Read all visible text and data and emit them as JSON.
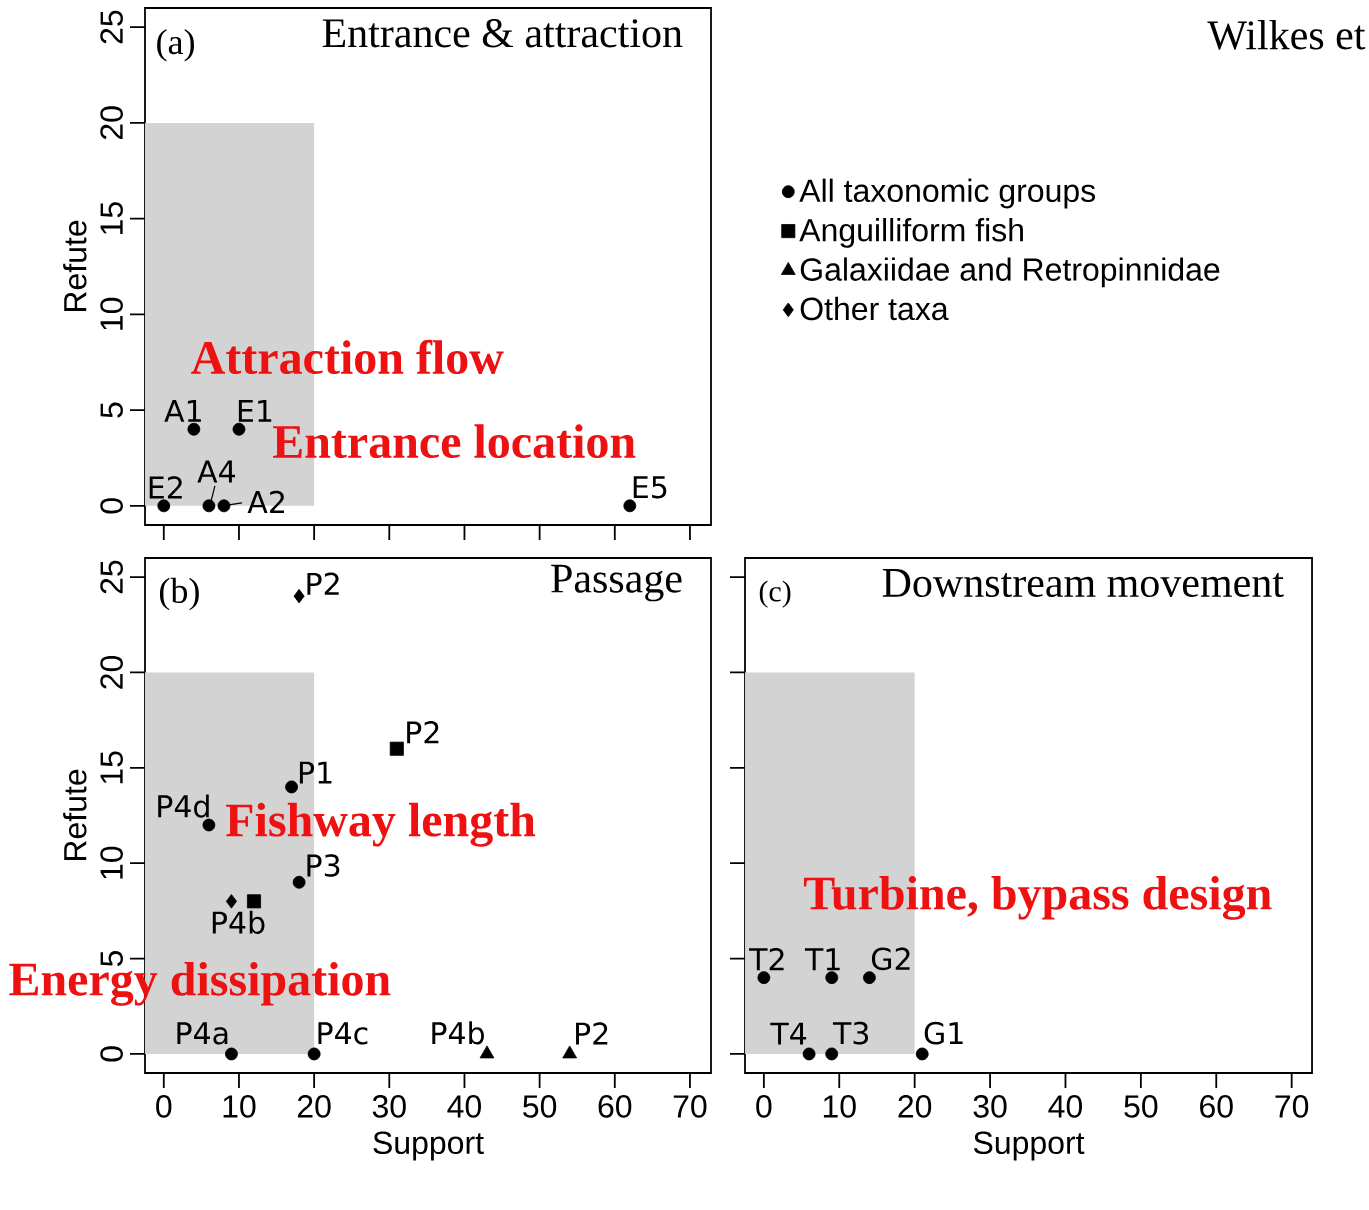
{
  "chart_data": [
    {
      "type": "scatter",
      "title": "Entrance & attraction",
      "ylabel": "Refute",
      "xlim": [
        -2.5,
        72.8
      ],
      "ylim": [
        -1,
        26
      ],
      "xticks": [
        0,
        10,
        20,
        30,
        40,
        50,
        60,
        70
      ],
      "yticks": [
        0,
        5,
        10,
        15,
        20,
        25
      ],
      "tick_labels": "y",
      "series": [
        {
          "type": "area",
          "color": "#d3d3d3",
          "x": [
            -2.5,
            20
          ],
          "values": [
            20,
            20
          ]
        },
        {
          "color": "#000000",
          "marker": "circle",
          "x": [
            4,
            10,
            0,
            6,
            8,
            62
          ],
          "values": [
            4,
            4,
            0,
            0,
            0,
            0
          ]
        }
      ],
      "annotations": [
        "(a)",
        "Attraction flow",
        "Entrance location",
        "Wilkes et",
        {
          "text": "A1",
          "x": 4,
          "y": 4
        },
        {
          "text": "E1",
          "x": 10,
          "y": 4
        },
        {
          "text": "E2",
          "x": 0,
          "y": 0
        },
        {
          "text": "A4",
          "x": 6,
          "y": 0
        },
        {
          "text": "A2",
          "x": 8,
          "y": 0
        },
        {
          "text": "E5",
          "x": 62,
          "y": 0
        }
      ]
    },
    {
      "type": "scatter",
      "title": "Passage",
      "xlabel": "Support",
      "ylabel": "Refute",
      "xlim": [
        -2.5,
        72.8
      ],
      "ylim": [
        -1,
        26
      ],
      "xticks": [
        0,
        10,
        20,
        30,
        40,
        50,
        60,
        70
      ],
      "yticks": [
        0,
        5,
        10,
        15,
        20,
        25
      ],
      "legend": "top right",
      "series": [
        {
          "type": "area",
          "color": "#d3d3d3",
          "x": [
            -2.5,
            20
          ],
          "values": [
            20,
            20
          ]
        },
        {
          "name": "All taxonomic groups",
          "color": "#000000",
          "marker": "circle",
          "x": [
            17,
            6,
            18,
            9,
            20
          ],
          "values": [
            14,
            12,
            9,
            0,
            0
          ]
        },
        {
          "name": "Anguilliform fish",
          "color": "#000000",
          "marker": "square",
          "x": [
            31,
            12
          ],
          "values": [
            16,
            8
          ]
        },
        {
          "name": "Galaxiidae and Retropinnidae",
          "color": "#000000",
          "marker": "triangle",
          "x": [
            43,
            54
          ],
          "values": [
            0,
            0
          ]
        },
        {
          "name": "Other taxa",
          "color": "#000000",
          "marker": "diamond",
          "x": [
            18,
            9
          ],
          "values": [
            24,
            8
          ]
        }
      ],
      "annotations": [
        "(b)",
        "Fishway length",
        "Energy dissipation",
        {
          "text": "P1",
          "x": 17,
          "y": 14
        },
        {
          "text": "P4d",
          "x": 6,
          "y": 12
        },
        {
          "text": "P3",
          "x": 18,
          "y": 9
        },
        {
          "text": "P4a",
          "x": 9,
          "y": 0
        },
        {
          "text": "P4c",
          "x": 20,
          "y": 0
        },
        {
          "text": "P2",
          "x": 31,
          "y": 16
        },
        {
          "text": "P4b",
          "x": 12,
          "y": 8
        },
        {
          "text": "P4b",
          "x": 43,
          "y": 0
        },
        {
          "text": "P2",
          "x": 54,
          "y": 0
        },
        {
          "text": "P2",
          "x": 18,
          "y": 24
        }
      ]
    },
    {
      "type": "scatter",
      "title": "Downstream movement",
      "xlabel": "Support",
      "xlim": [
        -2.5,
        72.7
      ],
      "ylim": [
        -1,
        26
      ],
      "xticks": [
        0,
        10,
        20,
        30,
        40,
        50,
        60,
        70
      ],
      "yticks": [
        0,
        5,
        10,
        15,
        20,
        25
      ],
      "tick_labels": "x",
      "series": [
        {
          "type": "area",
          "color": "#d3d3d3",
          "x": [
            -2.5,
            20
          ],
          "values": [
            20,
            20
          ]
        },
        {
          "color": "#000000",
          "marker": "circle",
          "x": [
            0,
            9,
            14,
            6,
            9,
            21
          ],
          "values": [
            4,
            4,
            4,
            0,
            0,
            0
          ]
        }
      ],
      "annotations": [
        "(c)",
        "Turbine, bypass design",
        {
          "text": "T2",
          "x": 0,
          "y": 4
        },
        {
          "text": "T1",
          "x": 9,
          "y": 4
        },
        {
          "text": "G2",
          "x": 14,
          "y": 4
        },
        {
          "text": "T4",
          "x": 6,
          "y": 0
        },
        {
          "text": "T3",
          "x": 9,
          "y": 0
        },
        {
          "text": "G1",
          "x": 21,
          "y": 0
        }
      ]
    }
  ]
}
